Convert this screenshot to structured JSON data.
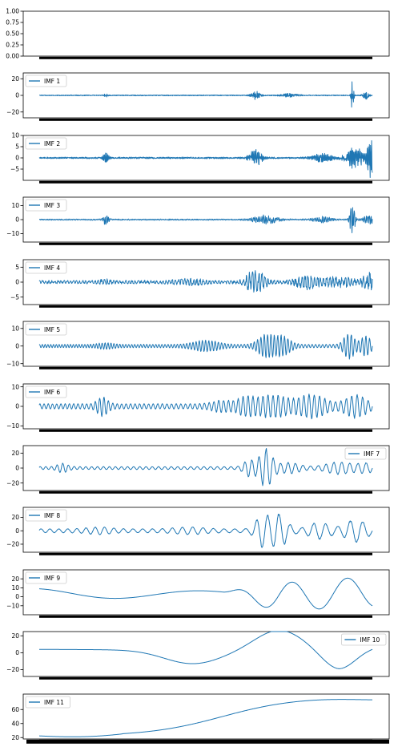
{
  "chart_data": [
    {
      "type": "line",
      "panel": 0,
      "series": [],
      "ylim": [
        0,
        1
      ],
      "yticks": [
        "0.00",
        "0.25",
        "0.50",
        "0.75",
        "1.00"
      ],
      "ytick_values": [
        0,
        0.25,
        0.5,
        0.75,
        1.0
      ],
      "legend": null
    },
    {
      "type": "line",
      "panel": 1,
      "series": [
        {
          "name": "IMF 1",
          "color": "#1f77b4"
        }
      ],
      "ylim": [
        -27,
        27
      ],
      "yticks": [
        "20",
        "0",
        "−20"
      ],
      "ytick_values": [
        20,
        0,
        -20
      ],
      "legend": "top-left"
    },
    {
      "type": "line",
      "panel": 2,
      "series": [
        {
          "name": "IMF 2",
          "color": "#1f77b4"
        }
      ],
      "ylim": [
        -10,
        10
      ],
      "yticks": [
        "10",
        "5",
        "0",
        "−5"
      ],
      "ytick_values": [
        10,
        5,
        0,
        -5
      ],
      "legend": "top-left"
    },
    {
      "type": "line",
      "panel": 3,
      "series": [
        {
          "name": "IMF 3",
          "color": "#1f77b4"
        }
      ],
      "ylim": [
        -16,
        16
      ],
      "yticks": [
        "10",
        "0",
        "−10"
      ],
      "ytick_values": [
        10,
        0,
        -10
      ],
      "legend": "top-left"
    },
    {
      "type": "line",
      "panel": 4,
      "series": [
        {
          "name": "IMF 4",
          "color": "#1f77b4"
        }
      ],
      "ylim": [
        -7.5,
        7.5
      ],
      "yticks": [
        "5",
        "0",
        "−5"
      ],
      "ytick_values": [
        5,
        0,
        -5
      ],
      "legend": "top-left"
    },
    {
      "type": "line",
      "panel": 5,
      "series": [
        {
          "name": "IMF 5",
          "color": "#1f77b4"
        }
      ],
      "ylim": [
        -11.5,
        14
      ],
      "yticks": [
        "10",
        "0",
        "−10"
      ],
      "ytick_values": [
        10,
        0,
        -10
      ],
      "legend": "top-left"
    },
    {
      "type": "line",
      "panel": 6,
      "series": [
        {
          "name": "IMF 6",
          "color": "#1f77b4"
        }
      ],
      "ylim": [
        -11.5,
        11.5
      ],
      "yticks": [
        "10",
        "0",
        "−10"
      ],
      "ytick_values": [
        10,
        0,
        -10
      ],
      "legend": "top-left"
    },
    {
      "type": "line",
      "panel": 7,
      "series": [
        {
          "name": "IMF 7",
          "color": "#1f77b4"
        }
      ],
      "ylim": [
        -30,
        30
      ],
      "yticks": [
        "20",
        "0",
        "−20"
      ],
      "ytick_values": [
        20,
        0,
        -20
      ],
      "legend": "top-right"
    },
    {
      "type": "line",
      "panel": 8,
      "series": [
        {
          "name": "IMF 8",
          "color": "#1f77b4"
        }
      ],
      "ylim": [
        -32,
        35
      ],
      "yticks": [
        "20",
        "0",
        "−20"
      ],
      "ytick_values": [
        20,
        0,
        -20
      ],
      "legend": "top-left"
    },
    {
      "type": "line",
      "panel": 9,
      "series": [
        {
          "name": "IMF 9",
          "color": "#1f77b4"
        }
      ],
      "ylim": [
        -20,
        30
      ],
      "yticks": [
        "20",
        "10",
        "0",
        "−10"
      ],
      "ytick_values": [
        20,
        10,
        0,
        -10
      ],
      "legend": "top-left"
    },
    {
      "type": "line",
      "panel": 10,
      "series": [
        {
          "name": "IMF 10",
          "color": "#1f77b4"
        }
      ],
      "ylim": [
        -28,
        25
      ],
      "yticks": [
        "20",
        "0",
        "−20"
      ],
      "ytick_values": [
        20,
        0,
        -20
      ],
      "legend": "top-right"
    },
    {
      "type": "line",
      "panel": 11,
      "series": [
        {
          "name": "IMF 11",
          "color": "#1f77b4"
        }
      ],
      "ylim": [
        18,
        82
      ],
      "yticks": [
        "60",
        "40",
        "20"
      ],
      "ytick_values": [
        60,
        40,
        20
      ],
      "legend": "top-left"
    }
  ]
}
